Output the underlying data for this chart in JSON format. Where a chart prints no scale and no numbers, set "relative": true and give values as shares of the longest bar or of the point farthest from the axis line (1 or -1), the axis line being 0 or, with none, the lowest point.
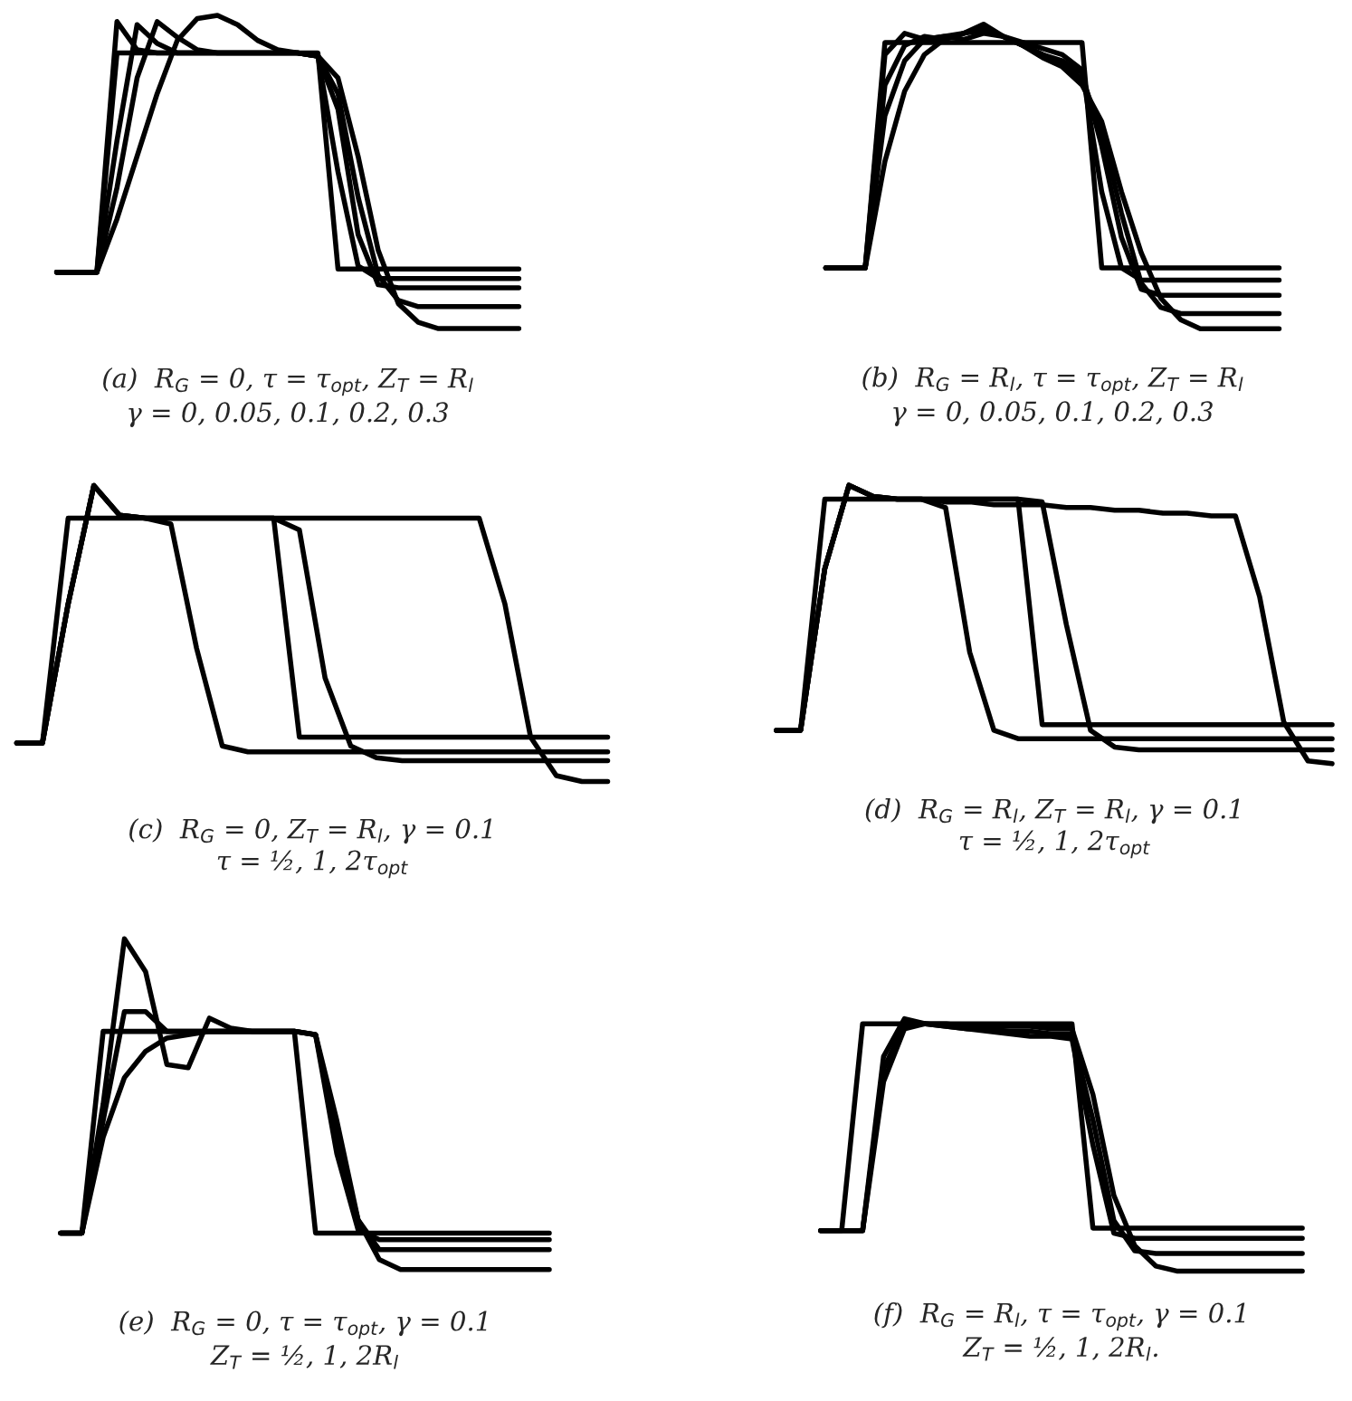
{
  "chart_data": [
    {
      "type": "line",
      "relative": true,
      "title": "(a)  R$_{G}$ = 0, τ = τ$_{opt}$, Z$_{T}$ = R$_{l}$\nγ = 0, 0.05, 0.1, 0.2, 0.3",
      "categories": [
        null,
        null,
        null,
        null,
        null,
        null,
        null,
        null,
        null,
        null,
        null,
        null,
        null,
        null,
        null,
        null,
        null,
        null,
        null,
        null,
        null,
        null,
        null,
        null
      ],
      "series": [
        {
          "color": "#000000",
          "values": [
            0.18,
            0.18,
            0.18,
            0.88,
            0.88,
            0.88,
            0.88,
            0.88,
            0.88,
            0.88,
            0.88,
            0.88,
            0.88,
            0.88,
            0.19,
            0.19,
            0.19,
            0.19,
            0.19,
            0.19,
            0.19,
            0.19,
            0.19,
            0.19
          ]
        },
        {
          "color": "#000000",
          "values": [
            0.18,
            0.18,
            0.18,
            0.98,
            0.89,
            0.88,
            0.88,
            0.88,
            0.88,
            0.88,
            0.88,
            0.88,
            0.88,
            0.87,
            0.5,
            0.2,
            0.16,
            0.16,
            0.16,
            0.16,
            0.16,
            0.16,
            0.16,
            0.16
          ]
        },
        {
          "color": "#000000",
          "values": [
            0.18,
            0.18,
            0.18,
            0.6,
            0.97,
            0.91,
            0.88,
            0.88,
            0.88,
            0.88,
            0.88,
            0.88,
            0.88,
            0.87,
            0.7,
            0.3,
            0.14,
            0.13,
            0.13,
            0.13,
            0.13,
            0.13,
            0.13,
            0.13
          ]
        },
        {
          "color": "#000000",
          "values": [
            0.18,
            0.18,
            0.18,
            0.45,
            0.8,
            0.98,
            0.93,
            0.89,
            0.88,
            0.88,
            0.88,
            0.88,
            0.88,
            0.87,
            0.75,
            0.42,
            0.17,
            0.09,
            0.07,
            0.07,
            0.07,
            0.07,
            0.07,
            0.07
          ]
        },
        {
          "color": "#000000",
          "values": [
            0.18,
            0.18,
            0.18,
            0.35,
            0.55,
            0.75,
            0.92,
            0.99,
            1.0,
            0.97,
            0.92,
            0.89,
            0.88,
            0.87,
            0.8,
            0.55,
            0.25,
            0.08,
            0.02,
            0.0,
            0.0,
            0.0,
            0.0,
            0.0
          ]
        }
      ]
    },
    {
      "type": "line",
      "relative": true,
      "title": "(b)  R$_{G}$ = R$_{l}$, τ = τ$_{opt}$, Z$_{T}$ = R$_{l}$\nγ = 0, 0.05, 0.1, 0.2, 0.3",
      "categories": [
        null,
        null,
        null,
        null,
        null,
        null,
        null,
        null,
        null,
        null,
        null,
        null,
        null,
        null,
        null,
        null,
        null,
        null,
        null,
        null,
        null,
        null,
        null,
        null
      ],
      "series": [
        {
          "color": "#000000",
          "values": [
            0.2,
            0.2,
            0.2,
            0.94,
            0.94,
            0.94,
            0.94,
            0.94,
            0.94,
            0.94,
            0.94,
            0.94,
            0.94,
            0.94,
            0.2,
            0.2,
            0.2,
            0.2,
            0.2,
            0.2,
            0.2,
            0.2,
            0.2,
            0.2
          ]
        },
        {
          "color": "#000000",
          "values": [
            0.2,
            0.2,
            0.2,
            0.9,
            0.97,
            0.95,
            0.96,
            0.95,
            0.97,
            0.96,
            0.94,
            0.92,
            0.9,
            0.85,
            0.45,
            0.2,
            0.16,
            0.16,
            0.16,
            0.16,
            0.16,
            0.16,
            0.16,
            0.16
          ]
        },
        {
          "color": "#000000",
          "values": [
            0.2,
            0.2,
            0.2,
            0.8,
            0.93,
            0.96,
            0.95,
            0.97,
            0.99,
            0.96,
            0.93,
            0.9,
            0.88,
            0.84,
            0.6,
            0.3,
            0.13,
            0.11,
            0.11,
            0.11,
            0.11,
            0.11,
            0.11,
            0.11
          ]
        },
        {
          "color": "#000000",
          "values": [
            0.2,
            0.2,
            0.2,
            0.7,
            0.88,
            0.95,
            0.96,
            0.97,
            0.98,
            0.96,
            0.93,
            0.9,
            0.87,
            0.82,
            0.65,
            0.38,
            0.15,
            0.07,
            0.05,
            0.05,
            0.05,
            0.05,
            0.05,
            0.05
          ]
        },
        {
          "color": "#000000",
          "values": [
            0.2,
            0.2,
            0.2,
            0.55,
            0.78,
            0.9,
            0.95,
            0.97,
            1.0,
            0.96,
            0.93,
            0.89,
            0.86,
            0.8,
            0.68,
            0.45,
            0.25,
            0.1,
            0.03,
            0.0,
            0.0,
            0.0,
            0.0,
            0.0
          ]
        }
      ]
    },
    {
      "type": "line",
      "relative": true,
      "title": "(c)  R$_{G}$ = 0, Z$_{T}$ = R$_{l}$, γ = 0.1\nτ = ½, 1, 2τ$_{opt}$",
      "categories": [
        null,
        null,
        null,
        null,
        null,
        null,
        null,
        null,
        null,
        null,
        null,
        null,
        null,
        null,
        null,
        null,
        null,
        null,
        null,
        null,
        null,
        null,
        null,
        null
      ],
      "series": [
        {
          "color": "#000000",
          "values": [
            0.13,
            0.13,
            0.89,
            0.89,
            0.89,
            0.89,
            0.89,
            0.89,
            0.89,
            0.89,
            0.89,
            0.15,
            0.15,
            0.15,
            0.15,
            0.15,
            0.15,
            0.15,
            0.15,
            0.15,
            0.15,
            0.15,
            0.15,
            0.15
          ]
        },
        {
          "color": "#000000",
          "values": [
            0.13,
            0.13,
            0.6,
            1.0,
            0.9,
            0.89,
            0.87,
            0.45,
            0.12,
            0.1,
            0.1,
            0.1,
            0.1,
            0.1,
            0.1,
            0.1,
            0.1,
            0.1,
            0.1,
            0.1,
            0.1,
            0.1,
            0.1,
            0.1
          ]
        },
        {
          "color": "#000000",
          "values": [
            0.13,
            0.13,
            0.6,
            1.0,
            0.9,
            0.89,
            0.89,
            0.89,
            0.89,
            0.89,
            0.89,
            0.85,
            0.35,
            0.12,
            0.08,
            0.07,
            0.07,
            0.07,
            0.07,
            0.07,
            0.07,
            0.07,
            0.07,
            0.07
          ]
        },
        {
          "color": "#000000",
          "values": [
            0.13,
            0.13,
            0.6,
            1.0,
            0.9,
            0.89,
            0.89,
            0.89,
            0.89,
            0.89,
            0.89,
            0.89,
            0.89,
            0.89,
            0.89,
            0.89,
            0.89,
            0.89,
            0.89,
            0.6,
            0.15,
            0.02,
            0.0,
            0.0
          ]
        }
      ]
    },
    {
      "type": "line",
      "relative": true,
      "title": "(d)  R$_{G}$ = R$_{l}$, Z$_{T}$ = R$_{l}$, γ = 0.1\nτ = ½, 1, 2τ$_{opt}$",
      "categories": [
        null,
        null,
        null,
        null,
        null,
        null,
        null,
        null,
        null,
        null,
        null,
        null,
        null,
        null,
        null,
        null,
        null,
        null,
        null,
        null,
        null,
        null,
        null,
        null
      ],
      "series": [
        {
          "color": "#000000",
          "values": [
            0.12,
            0.12,
            0.95,
            0.95,
            0.95,
            0.95,
            0.95,
            0.95,
            0.95,
            0.95,
            0.95,
            0.14,
            0.14,
            0.14,
            0.14,
            0.14,
            0.14,
            0.14,
            0.14,
            0.14,
            0.14,
            0.14,
            0.14,
            0.14
          ]
        },
        {
          "color": "#000000",
          "values": [
            0.12,
            0.12,
            0.7,
            1.0,
            0.96,
            0.95,
            0.95,
            0.92,
            0.4,
            0.12,
            0.09,
            0.09,
            0.09,
            0.09,
            0.09,
            0.09,
            0.09,
            0.09,
            0.09,
            0.09,
            0.09,
            0.09,
            0.09,
            0.09
          ]
        },
        {
          "color": "#000000",
          "values": [
            0.12,
            0.12,
            0.7,
            1.0,
            0.96,
            0.95,
            0.95,
            0.95,
            0.95,
            0.95,
            0.95,
            0.94,
            0.5,
            0.12,
            0.06,
            0.05,
            0.05,
            0.05,
            0.05,
            0.05,
            0.05,
            0.05,
            0.05,
            0.05
          ]
        },
        {
          "color": "#000000",
          "values": [
            0.12,
            0.12,
            0.7,
            1.0,
            0.96,
            0.95,
            0.95,
            0.94,
            0.94,
            0.93,
            0.93,
            0.93,
            0.92,
            0.92,
            0.91,
            0.91,
            0.9,
            0.9,
            0.89,
            0.89,
            0.6,
            0.15,
            0.01,
            0.0
          ]
        }
      ]
    },
    {
      "type": "line",
      "relative": true,
      "title": "(e)  R$_{G}$ = 0, τ = τ$_{opt}$, γ = 0.1\nZ$_{T}$ = ½, 1, 2R$_{l}$",
      "categories": [
        null,
        null,
        null,
        null,
        null,
        null,
        null,
        null,
        null,
        null,
        null,
        null,
        null,
        null,
        null,
        null,
        null,
        null,
        null,
        null,
        null,
        null,
        null,
        null
      ],
      "series": [
        {
          "color": "#000000",
          "values": [
            0.11,
            0.11,
            0.72,
            0.72,
            0.72,
            0.72,
            0.72,
            0.72,
            0.72,
            0.72,
            0.72,
            0.72,
            0.11,
            0.11,
            0.11,
            0.11,
            0.11,
            0.11,
            0.11,
            0.11,
            0.11,
            0.11,
            0.11,
            0.11
          ]
        },
        {
          "color": "#000000",
          "values": [
            0.11,
            0.11,
            0.4,
            0.58,
            0.66,
            0.7,
            0.71,
            0.72,
            0.72,
            0.72,
            0.72,
            0.72,
            0.71,
            0.35,
            0.12,
            0.09,
            0.09,
            0.09,
            0.09,
            0.09,
            0.09,
            0.09,
            0.09,
            0.09
          ]
        },
        {
          "color": "#000000",
          "values": [
            0.11,
            0.11,
            0.45,
            0.78,
            0.78,
            0.72,
            0.72,
            0.72,
            0.72,
            0.72,
            0.72,
            0.72,
            0.71,
            0.4,
            0.15,
            0.06,
            0.06,
            0.06,
            0.06,
            0.06,
            0.06,
            0.06,
            0.06,
            0.06
          ]
        },
        {
          "color": "#000000",
          "values": [
            0.11,
            0.11,
            0.5,
            1.0,
            0.9,
            0.62,
            0.61,
            0.76,
            0.73,
            0.72,
            0.72,
            0.72,
            0.71,
            0.45,
            0.15,
            0.03,
            0.0,
            0.0,
            0.0,
            0.0,
            0.0,
            0.0,
            0.0,
            0.0
          ]
        }
      ]
    },
    {
      "type": "line",
      "relative": true,
      "title": "(f)  R$_{G}$ = R$_{l}$, τ = τ$_{opt}$, γ = 0.1\nZ$_{T}$ = ½, 1, 2R$_{l}$.",
      "categories": [
        null,
        null,
        null,
        null,
        null,
        null,
        null,
        null,
        null,
        null,
        null,
        null,
        null,
        null,
        null,
        null,
        null,
        null,
        null,
        null,
        null,
        null,
        null,
        null
      ],
      "series": [
        {
          "color": "#000000",
          "values": [
            0.16,
            0.16,
            0.98,
            0.98,
            0.98,
            0.98,
            0.98,
            0.98,
            0.98,
            0.98,
            0.98,
            0.98,
            0.98,
            0.17,
            0.17,
            0.17,
            0.17,
            0.17,
            0.17,
            0.17,
            0.17,
            0.17,
            0.17,
            0.17
          ]
        },
        {
          "color": "#000000",
          "values": [
            0.16,
            0.16,
            0.16,
            0.85,
            1.0,
            0.98,
            0.97,
            0.96,
            0.95,
            0.94,
            0.93,
            0.93,
            0.92,
            0.5,
            0.15,
            0.13,
            0.13,
            0.13,
            0.13,
            0.13,
            0.13,
            0.13,
            0.13,
            0.13
          ]
        },
        {
          "color": "#000000",
          "values": [
            0.16,
            0.16,
            0.16,
            0.8,
            0.98,
            0.98,
            0.97,
            0.96,
            0.96,
            0.95,
            0.95,
            0.94,
            0.94,
            0.6,
            0.2,
            0.08,
            0.07,
            0.07,
            0.07,
            0.07,
            0.07,
            0.07,
            0.07,
            0.07
          ]
        },
        {
          "color": "#000000",
          "values": [
            0.16,
            0.16,
            0.16,
            0.75,
            0.96,
            0.98,
            0.98,
            0.97,
            0.97,
            0.97,
            0.97,
            0.96,
            0.96,
            0.7,
            0.3,
            0.1,
            0.02,
            0.0,
            0.0,
            0.0,
            0.0,
            0.0,
            0.0,
            0.0
          ]
        }
      ]
    }
  ]
}
